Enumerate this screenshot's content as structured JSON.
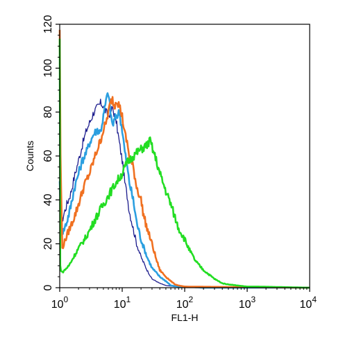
{
  "chart_data": {
    "type": "line",
    "title": "",
    "xlabel": "FL1-H",
    "ylabel": "Counts",
    "x_scale": "log",
    "xlim": [
      1,
      10000
    ],
    "ylim": [
      0,
      120
    ],
    "x_ticks": [
      {
        "value": 1,
        "base": "10",
        "exp": "0"
      },
      {
        "value": 10,
        "base": "10",
        "exp": "1"
      },
      {
        "value": 100,
        "base": "10",
        "exp": "2"
      },
      {
        "value": 1000,
        "base": "10",
        "exp": "3"
      },
      {
        "value": 10000,
        "base": "10",
        "exp": "4"
      }
    ],
    "y_ticks": [
      0,
      20,
      40,
      60,
      80,
      100,
      120
    ],
    "grid": false,
    "legend": "none",
    "series": [
      {
        "color": "#1a1a8c",
        "x": [
          1.0,
          1.05,
          1.15,
          1.3,
          1.5,
          1.7,
          2.0,
          2.3,
          2.7,
          3.0,
          3.5,
          4.0,
          4.5,
          5.0,
          5.5,
          6.0,
          7.0,
          8.0,
          9.0,
          10,
          11,
          12,
          13,
          15,
          17,
          20,
          25,
          30,
          40,
          50,
          70,
          100,
          200,
          300,
          10000
        ],
        "y": [
          70,
          28,
          33,
          38,
          43,
          50,
          58,
          65,
          72,
          75,
          80,
          82,
          84,
          83,
          80,
          78,
          82,
          76,
          66,
          58,
          48,
          42,
          35,
          27,
          20,
          14,
          8,
          4,
          2,
          1,
          0.5,
          0.5,
          0.5,
          0,
          0
        ]
      },
      {
        "color": "#2b9fe0",
        "x": [
          1.0,
          1.05,
          1.15,
          1.3,
          1.5,
          1.7,
          2.0,
          2.3,
          2.7,
          3.0,
          3.5,
          4.0,
          4.5,
          5.0,
          5.5,
          6.0,
          6.5,
          7.0,
          8.0,
          9.0,
          10,
          11,
          12,
          13,
          15,
          17,
          20,
          25,
          30,
          40,
          50,
          60,
          80,
          100,
          200,
          10000
        ],
        "y": [
          50,
          25,
          26,
          30,
          37,
          45,
          52,
          58,
          62,
          66,
          70,
          72,
          71,
          78,
          85,
          89,
          80,
          74,
          78,
          80,
          72,
          62,
          55,
          48,
          40,
          30,
          22,
          14,
          9,
          5,
          3,
          1,
          0.5,
          0.5,
          0,
          0
        ]
      },
      {
        "color": "#f07020",
        "x": [
          1.0,
          1.03,
          1.1,
          1.2,
          1.35,
          1.5,
          1.8,
          2.1,
          2.5,
          3.0,
          3.5,
          4.0,
          4.5,
          5.0,
          5.5,
          6.0,
          6.5,
          7.0,
          7.5,
          8.0,
          9.0,
          10,
          11,
          12,
          13,
          15,
          17,
          20,
          22,
          25,
          30,
          35,
          40,
          50,
          60,
          70,
          80,
          100,
          10000
        ],
        "y": [
          118,
          60,
          18,
          21,
          25,
          28,
          34,
          40,
          47,
          52,
          58,
          63,
          67,
          72,
          75,
          80,
          84,
          86,
          82,
          86,
          83,
          78,
          70,
          66,
          60,
          55,
          46,
          40,
          33,
          27,
          20,
          13,
          8,
          5,
          3,
          1.5,
          1,
          0.5,
          0
        ]
      },
      {
        "color": "#22dd22",
        "x": [
          1.0,
          1.02,
          1.05,
          1.1,
          1.2,
          1.4,
          1.6,
          2.0,
          2.5,
          3.0,
          3.5,
          4.0,
          5.0,
          6.0,
          7.0,
          8.0,
          10,
          12,
          15,
          18,
          20,
          25,
          28,
          30,
          35,
          40,
          50,
          60,
          70,
          80,
          100,
          120,
          150,
          200,
          300,
          400,
          500,
          700,
          1000,
          1500,
          10000
        ],
        "y": [
          113,
          10,
          8,
          7,
          8,
          10,
          13,
          18,
          22,
          26,
          30,
          33,
          38,
          42,
          45,
          48,
          52,
          57,
          60,
          62,
          63,
          65,
          67,
          64,
          58,
          52,
          44,
          38,
          32,
          27,
          22,
          17,
          12,
          8,
          4,
          2,
          1.5,
          1,
          0.5,
          0.5,
          0
        ]
      }
    ]
  }
}
